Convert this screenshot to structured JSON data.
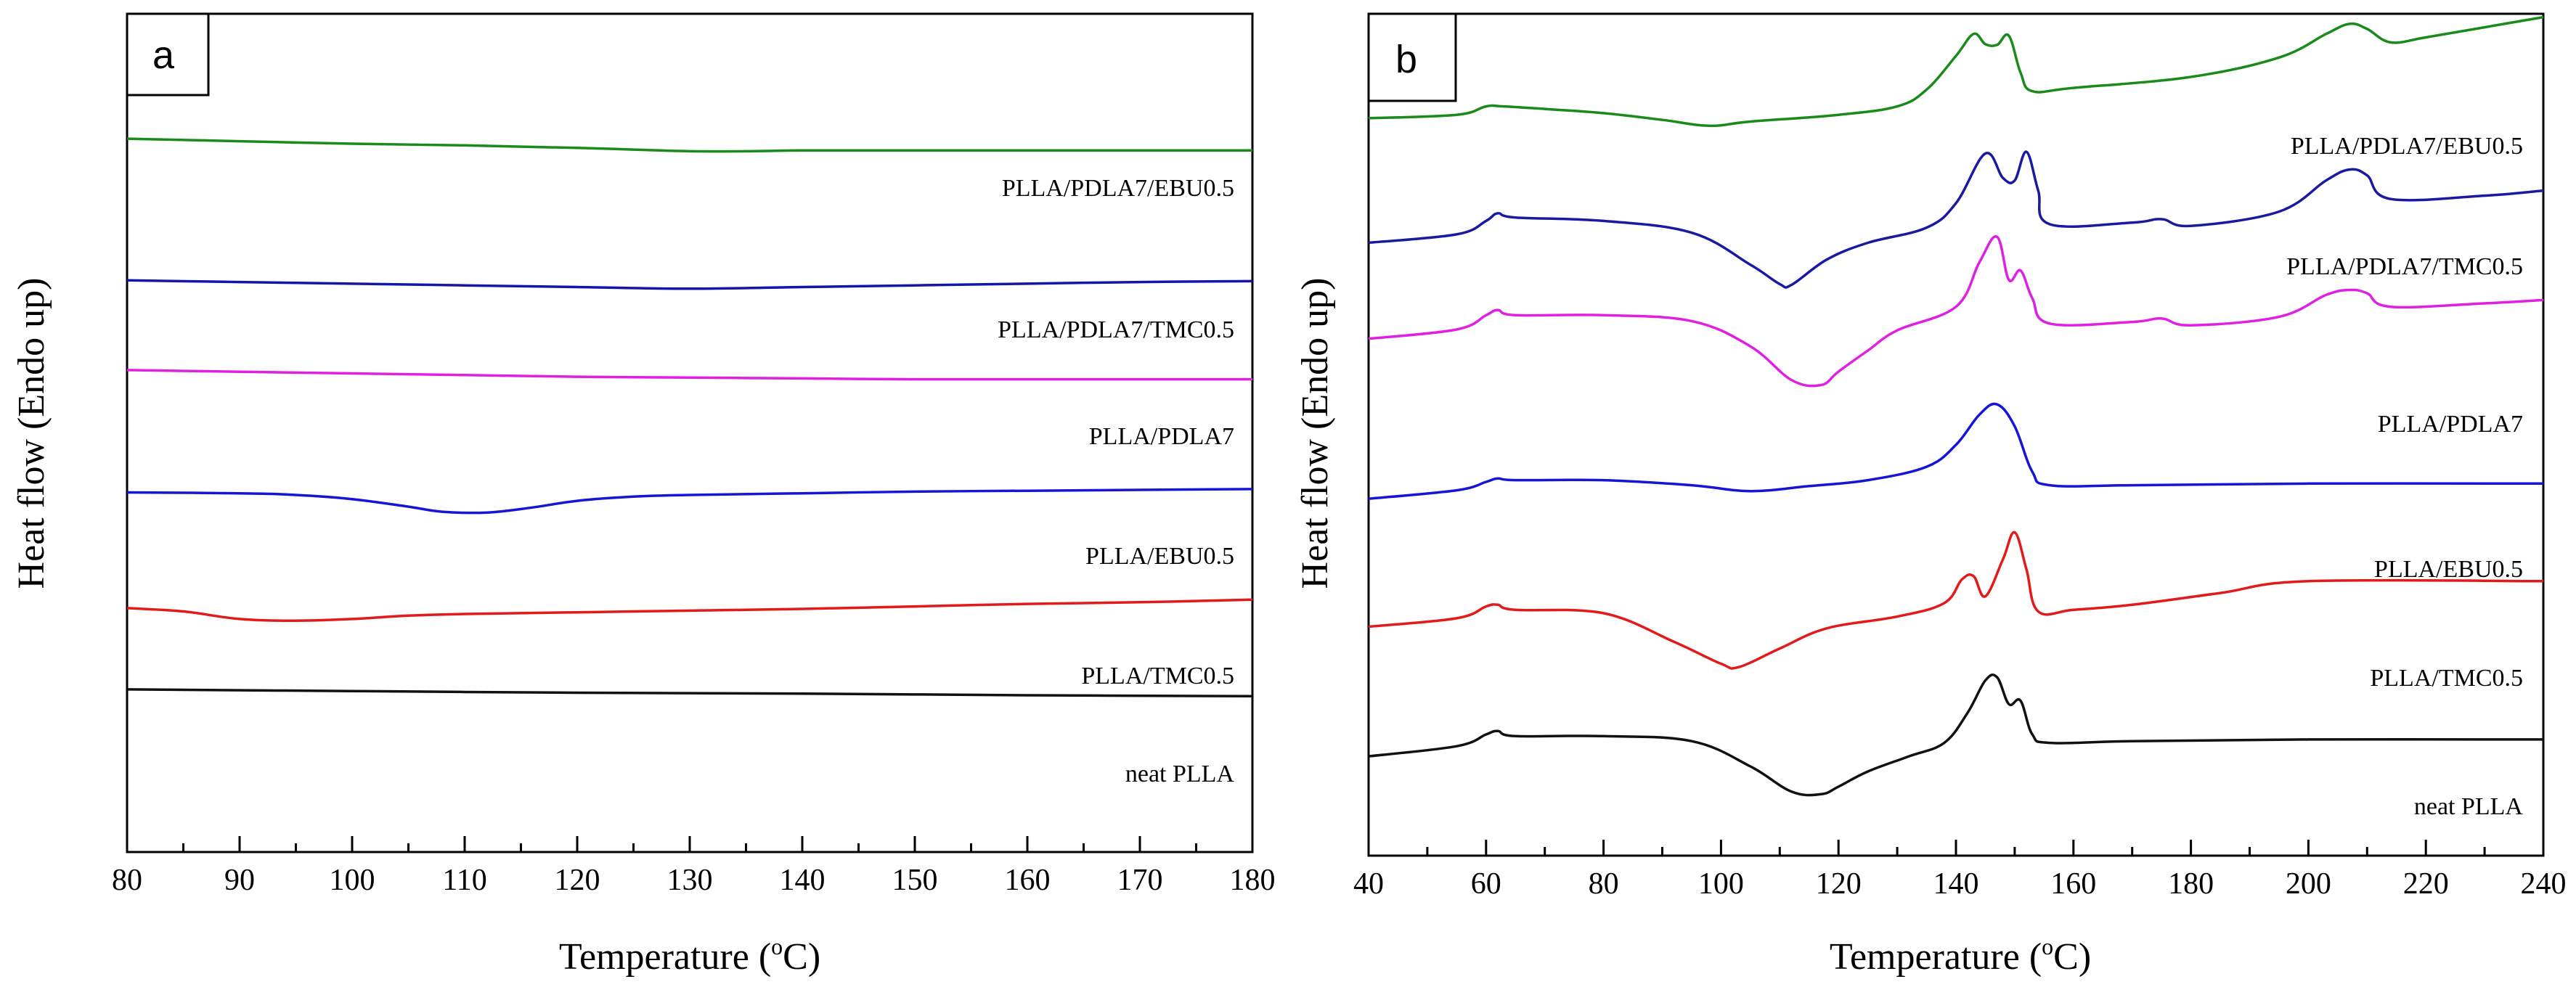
{
  "chart_data": [
    {
      "panel": "a",
      "type": "line",
      "xlabel": "Temperature (oC)",
      "xlabel_main": "Temperature (",
      "xlabel_sup": "o",
      "xlabel_end": "C)",
      "ylabel": "Heat flow (Endo up)",
      "xlim": [
        80,
        180
      ],
      "ylim": [
        0,
        100
      ],
      "x_ticks": [
        80,
        90,
        100,
        110,
        120,
        130,
        140,
        150,
        160,
        170,
        180
      ],
      "x_tick_labels": [
        "80",
        "90",
        "100",
        "110",
        "120",
        "130",
        "140",
        "150",
        "160",
        "170",
        "180"
      ],
      "series": [
        {
          "name": "PLLA/PDLA7/EBU0.5",
          "color": "#1a8a1a",
          "x": [
            80,
            90,
            100,
            110,
            120,
            125,
            130,
            135,
            140,
            150,
            160,
            170,
            180
          ],
          "y": [
            85.1,
            84.8,
            84.5,
            84.3,
            84.0,
            83.8,
            83.6,
            83.6,
            83.7,
            83.7,
            83.7,
            83.7,
            83.7
          ]
        },
        {
          "name": "PLLA/PDLA7/TMC0.5",
          "color": "#1515a8",
          "x": [
            80,
            90,
            100,
            110,
            120,
            130,
            140,
            150,
            160,
            170,
            180
          ],
          "y": [
            68.2,
            68.0,
            67.8,
            67.6,
            67.4,
            67.2,
            67.4,
            67.6,
            67.8,
            68.0,
            68.1
          ]
        },
        {
          "name": "PLLA/PDLA7",
          "color": "#e020e0",
          "x": [
            80,
            90,
            100,
            110,
            120,
            130,
            140,
            150,
            160,
            170,
            180
          ],
          "y": [
            57.5,
            57.3,
            57.1,
            56.9,
            56.7,
            56.6,
            56.5,
            56.4,
            56.4,
            56.4,
            56.4
          ]
        },
        {
          "name": "PLLA/EBU0.5",
          "color": "#1515d8",
          "x": [
            80,
            90,
            95,
            100,
            105,
            108,
            112,
            116,
            120,
            125,
            130,
            140,
            150,
            160,
            170,
            180
          ],
          "y": [
            42.9,
            42.8,
            42.6,
            42.1,
            41.2,
            40.6,
            40.5,
            41.1,
            41.9,
            42.4,
            42.6,
            42.8,
            43.0,
            43.1,
            43.2,
            43.3
          ]
        },
        {
          "name": "PLLA/TMC0.5",
          "color": "#e31a1a",
          "x": [
            80,
            85,
            90,
            95,
            100,
            105,
            110,
            120,
            130,
            140,
            150,
            160,
            170,
            180
          ],
          "y": [
            29.1,
            28.7,
            27.8,
            27.6,
            27.8,
            28.2,
            28.4,
            28.6,
            28.8,
            29.0,
            29.3,
            29.6,
            29.8,
            30.1
          ]
        },
        {
          "name": "neat PLLA",
          "color": "#111111",
          "x": [
            80,
            100,
            120,
            140,
            160,
            180
          ],
          "y": [
            19.4,
            19.2,
            19.0,
            18.9,
            18.7,
            18.6
          ]
        }
      ],
      "labels": [
        "PLLA/PDLA7/EBU0.5",
        "PLLA/PDLA7/TMC0.5",
        "PLLA/PDLA7",
        "PLLA/EBU0.5",
        "PLLA/TMC0.5",
        "neat PLLA"
      ]
    },
    {
      "panel": "b",
      "type": "line",
      "xlabel": "Temperature (oC)",
      "xlabel_main": "Temperature (",
      "xlabel_sup": "o",
      "xlabel_end": "C)",
      "ylabel": "Heat flow (Endo up)",
      "xlim": [
        40,
        240
      ],
      "ylim": [
        0,
        100
      ],
      "x_ticks": [
        40,
        60,
        80,
        100,
        120,
        140,
        160,
        180,
        200,
        220,
        240
      ],
      "x_tick_labels": [
        "40",
        "60",
        "80",
        "100",
        "120",
        "140",
        "160",
        "180",
        "200",
        "220",
        "240"
      ],
      "series": [
        {
          "name": "PLLA/PDLA7/EBU0.5",
          "color": "#1a8a1a",
          "x": [
            40,
            55,
            60,
            63,
            70,
            80,
            90,
            98,
            105,
            120,
            130,
            135,
            140,
            143,
            145,
            147,
            149,
            151,
            153,
            160,
            180,
            195,
            203,
            207,
            210,
            214,
            220,
            230,
            240
          ],
          "y": [
            87.6,
            88.0,
            89.0,
            89.0,
            88.7,
            88.2,
            87.4,
            86.7,
            87.2,
            88.0,
            89.0,
            91.0,
            95.0,
            97.6,
            96.4,
            96.3,
            97.4,
            93.0,
            90.8,
            91.2,
            92.5,
            94.8,
            97.6,
            98.8,
            98.2,
            96.6,
            97.2,
            98.4,
            99.6
          ]
        },
        {
          "name": "PLLA/PDLA7/TMC0.5",
          "color": "#1a1aa0",
          "x": [
            40,
            55,
            60,
            62,
            65,
            80,
            95,
            105,
            110,
            112,
            118,
            125,
            135,
            140,
            145,
            148,
            150,
            152,
            154,
            156,
            170,
            175,
            180,
            195,
            203,
            207,
            210,
            214,
            230,
            240
          ],
          "y": [
            72.8,
            73.8,
            75.4,
            76.3,
            75.8,
            75.4,
            74.0,
            70.2,
            67.9,
            67.8,
            70.8,
            72.8,
            74.6,
            77.5,
            83.4,
            80.5,
            80.2,
            83.6,
            79.0,
            75.0,
            75.2,
            75.6,
            74.8,
            76.5,
            80.2,
            81.5,
            80.8,
            78.0,
            78.4,
            79.0
          ]
        },
        {
          "name": "PLLA/PDLA7",
          "color": "#e020e0",
          "x": [
            40,
            55,
            60,
            62,
            65,
            80,
            95,
            105,
            112,
            117,
            120,
            125,
            130,
            140,
            144,
            147,
            149,
            151,
            153,
            156,
            170,
            175,
            180,
            195,
            203,
            207,
            210,
            214,
            230,
            240
          ],
          "y": [
            61.4,
            62.5,
            64.2,
            64.8,
            64.2,
            64.2,
            63.5,
            60.5,
            56.5,
            55.9,
            57.5,
            60.0,
            62.4,
            65.2,
            70.5,
            73.5,
            68.4,
            69.5,
            66.2,
            63.2,
            63.4,
            63.8,
            63.0,
            64.0,
            66.6,
            67.2,
            66.8,
            65.2,
            65.6,
            66.0
          ]
        },
        {
          "name": "PLLA/EBU0.5",
          "color": "#1515d8",
          "x": [
            40,
            55,
            60,
            62,
            65,
            80,
            95,
            105,
            115,
            125,
            135,
            140,
            144,
            147,
            150,
            153,
            156,
            170,
            200,
            240
          ],
          "y": [
            42.4,
            43.4,
            44.4,
            44.8,
            44.6,
            44.6,
            44.0,
            43.3,
            43.9,
            44.6,
            46.2,
            48.8,
            52.4,
            53.6,
            51.0,
            45.6,
            44.0,
            44.0,
            44.2,
            44.2
          ]
        },
        {
          "name": "PLLA/TMC0.5",
          "color": "#e31a1a",
          "x": [
            40,
            55,
            60,
            62,
            65,
            80,
            92,
            100,
            103,
            110,
            118,
            130,
            138,
            141,
            143,
            145,
            148,
            150,
            152,
            154,
            160,
            170,
            185,
            200,
            240
          ],
          "y": [
            27.2,
            28.2,
            29.6,
            29.8,
            29.2,
            28.8,
            25.4,
            22.8,
            22.4,
            24.6,
            27.0,
            28.4,
            30.0,
            32.8,
            33.2,
            30.8,
            35.2,
            38.4,
            34.0,
            29.0,
            29.2,
            29.8,
            31.2,
            32.6,
            32.6
          ]
        },
        {
          "name": "neat PLLA",
          "color": "#111111",
          "x": [
            40,
            55,
            60,
            62,
            65,
            80,
            95,
            105,
            112,
            117,
            120,
            125,
            132,
            138,
            142,
            145,
            147,
            149,
            151,
            153,
            156,
            170,
            200,
            240
          ],
          "y": [
            11.8,
            13.0,
            14.4,
            14.8,
            14.2,
            14.2,
            13.6,
            10.6,
            7.6,
            7.3,
            8.2,
            10.0,
            11.8,
            13.4,
            17.0,
            20.8,
            21.2,
            18.0,
            18.4,
            14.4,
            13.4,
            13.6,
            13.8,
            13.8
          ]
        }
      ],
      "labels": [
        "PLLA/PDLA7/EBU0.5",
        "PLLA/PDLA7/TMC0.5",
        "PLLA/PDLA7",
        "PLLA/EBU0.5",
        "PLLA/TMC0.5",
        "neat PLLA"
      ]
    }
  ]
}
